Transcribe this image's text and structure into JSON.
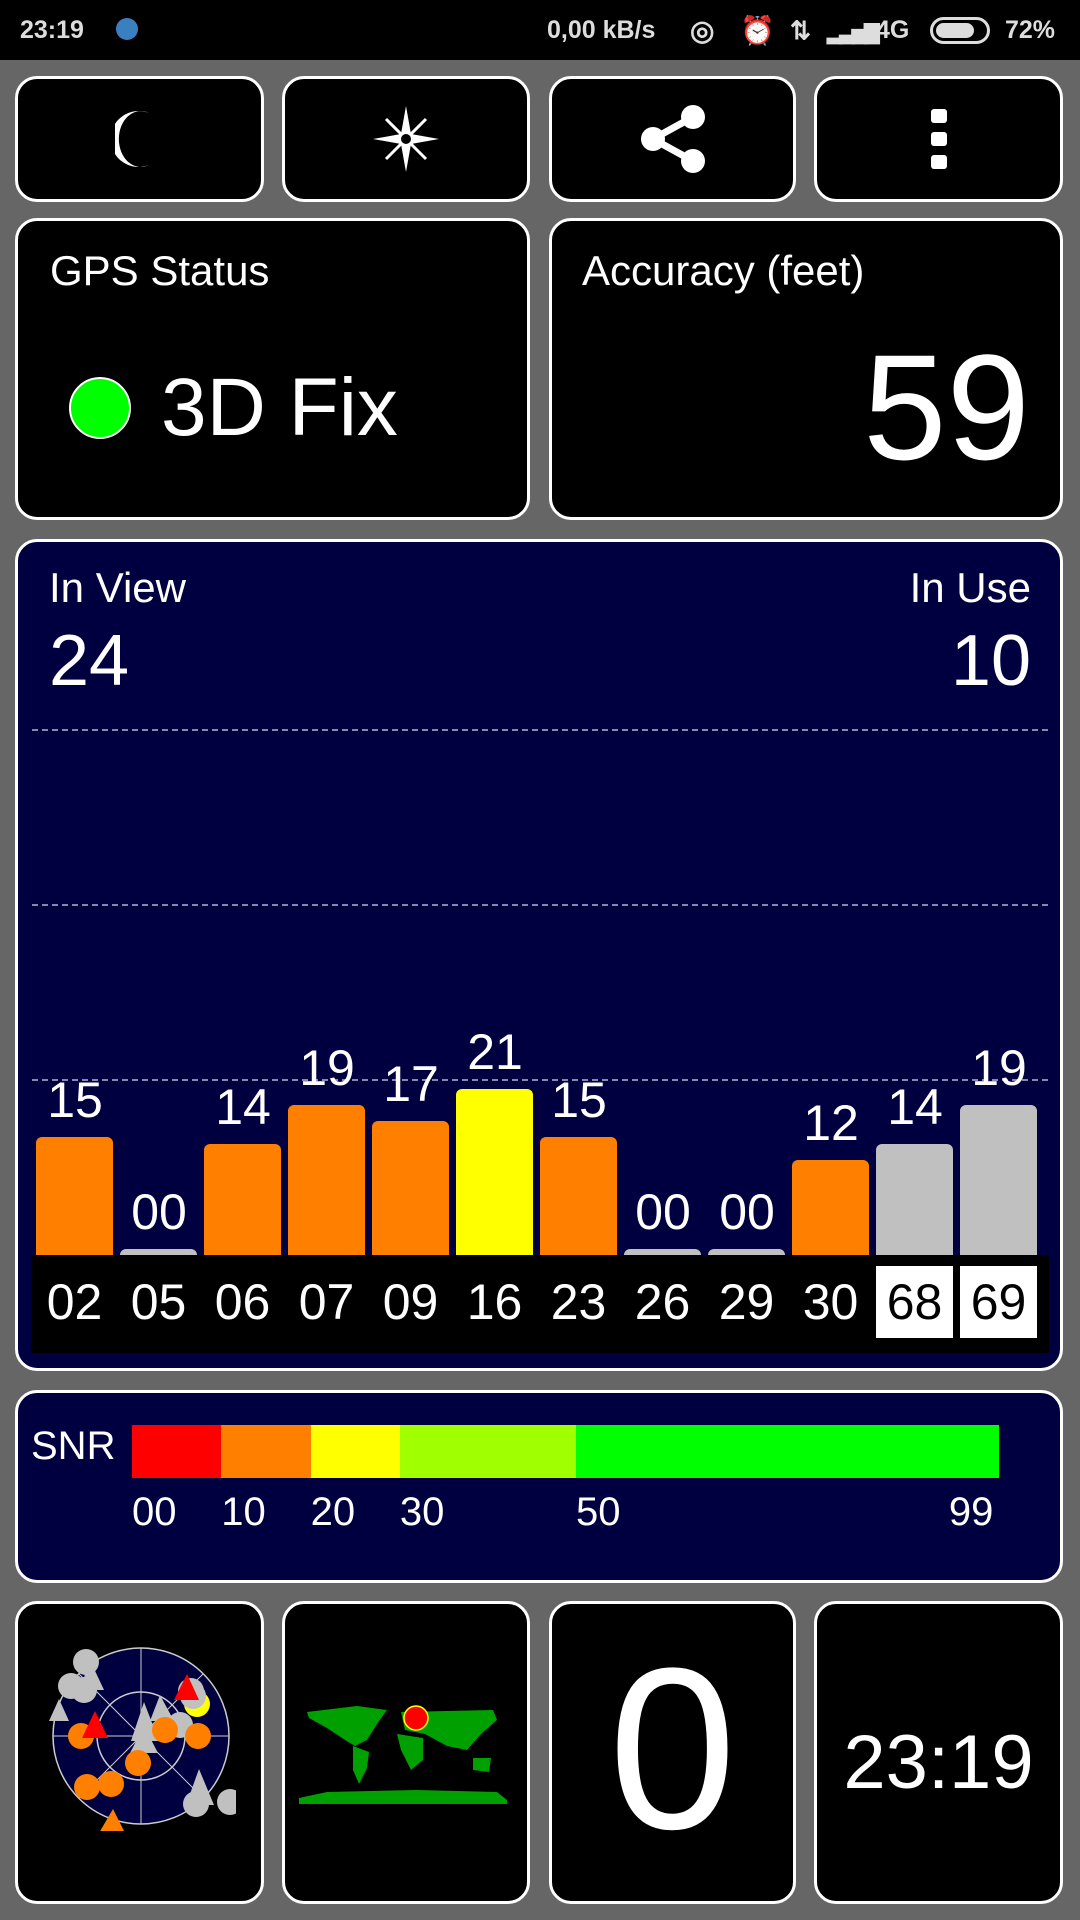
{
  "status_bar": {
    "time": "23:19",
    "speed": "0,00 kB/s",
    "network": "4G",
    "battery": "72%",
    "battery_level": 0.72
  },
  "toolbar": {
    "night_mode_icon": "moon-icon",
    "compass_icon": "compass-icon",
    "share_icon": "share-icon",
    "menu_icon": "more-vert-icon"
  },
  "gps_status": {
    "title": "GPS Status",
    "value": "3D Fix",
    "indicator_color": "#00ff00"
  },
  "accuracy": {
    "title": "Accuracy (feet)",
    "value": "59"
  },
  "satellites": {
    "in_view_label": "In View",
    "in_view": "24",
    "in_use_label": "In Use",
    "in_use": "10"
  },
  "chart_data": {
    "type": "bar",
    "categories": [
      "02",
      "05",
      "06",
      "07",
      "09",
      "16",
      "23",
      "26",
      "29",
      "30",
      "68",
      "69"
    ],
    "values": [
      15,
      0,
      14,
      19,
      17,
      21,
      15,
      0,
      0,
      12,
      14,
      19
    ],
    "value_labels": [
      "15",
      "00",
      "14",
      "19",
      "17",
      "21",
      "15",
      "00",
      "00",
      "12",
      "14",
      "19"
    ],
    "colors": [
      "#ff8000",
      "#c0c0c0",
      "#ff8000",
      "#ff8000",
      "#ff8000",
      "#ffff00",
      "#ff8000",
      "#c0c0c0",
      "#c0c0c0",
      "#ff8000",
      "#c0c0c0",
      "#c0c0c0"
    ],
    "highlighted_labels": [
      "68",
      "69"
    ]
  },
  "snr_legend": {
    "title": "SNR",
    "ticks": [
      "00",
      "10",
      "20",
      "30",
      "50",
      "99"
    ],
    "segments": [
      {
        "from": 0,
        "to": 10,
        "color": "#ff0000"
      },
      {
        "from": 10,
        "to": 20,
        "color": "#ff8000"
      },
      {
        "from": 20,
        "to": 30,
        "color": "#ffff00"
      },
      {
        "from": 30,
        "to": 50,
        "color": "#a0ff00"
      },
      {
        "from": 50,
        "to": 99,
        "color": "#00ff00"
      }
    ]
  },
  "bottom": {
    "speed": "0",
    "clock": "23:19"
  }
}
